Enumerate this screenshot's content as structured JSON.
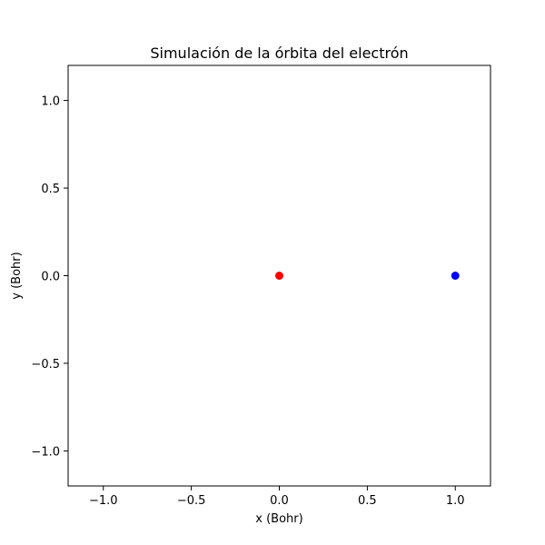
{
  "chart_data": {
    "type": "scatter",
    "title": "Simulación de la órbita del electrón",
    "xlabel": "x (Bohr)",
    "ylabel": "y (Bohr)",
    "xlim": [
      -1.2,
      1.2
    ],
    "ylim": [
      -1.2,
      1.2
    ],
    "grid": false,
    "x_ticks": [
      -1.0,
      -0.5,
      0.0,
      0.5,
      1.0
    ],
    "y_ticks": [
      -1.0,
      -0.5,
      0.0,
      0.5,
      1.0
    ],
    "x_tick_labels": [
      "−1.0",
      "−0.5",
      "0.0",
      "0.5",
      "1.0"
    ],
    "y_tick_labels": [
      "−1.0",
      "−0.5",
      "0.0",
      "0.5",
      "1.0"
    ],
    "points": [
      {
        "x": 0.0,
        "y": 0.0,
        "color": "#ff0000"
      },
      {
        "x": 1.0,
        "y": 0.0,
        "color": "#0000ff"
      }
    ]
  }
}
